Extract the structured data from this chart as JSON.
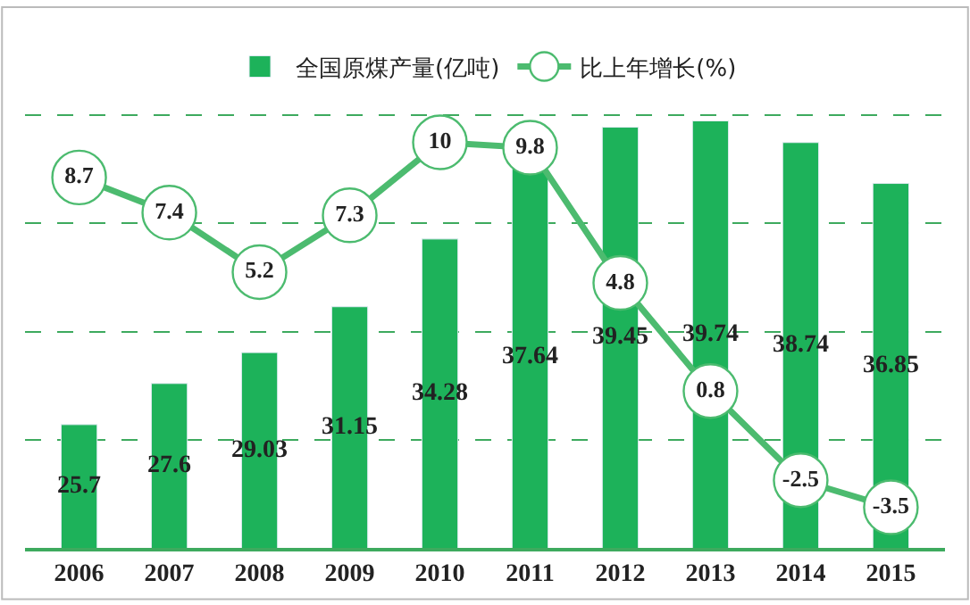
{
  "chart_data": {
    "type": "bar",
    "categories": [
      "2006",
      "2007",
      "2008",
      "2009",
      "2010",
      "2011",
      "2012",
      "2013",
      "2014",
      "2015"
    ],
    "series": [
      {
        "name": "全国原煤产量(亿吨)",
        "color": "#1db25a",
        "values": [
          25.7,
          27.6,
          29.03,
          31.15,
          34.28,
          37.64,
          39.45,
          39.74,
          38.74,
          36.85
        ]
      },
      {
        "name": "比上年增长(%)",
        "type": "line",
        "axis": "y2",
        "color": "#4cbb6f",
        "marker": "circle",
        "values": [
          8.7,
          7.4,
          5.2,
          7.3,
          10,
          9.8,
          4.8,
          0.8,
          -2.5,
          -3.5
        ]
      }
    ],
    "ylim": [
      20,
      45
    ],
    "yticks": [
      {
        "value": 20,
        "label": null
      },
      {
        "value": 25,
        "label": null
      },
      {
        "value": 30,
        "label": null
      },
      {
        "value": 35,
        "label": null
      },
      {
        "value": 40,
        "label": null
      },
      {
        "value": 45,
        "label": null
      }
    ],
    "y2lim": [
      -5,
      15
    ],
    "tick_labels": "x",
    "grid": "y",
    "legend": "top",
    "data_labels": true
  }
}
